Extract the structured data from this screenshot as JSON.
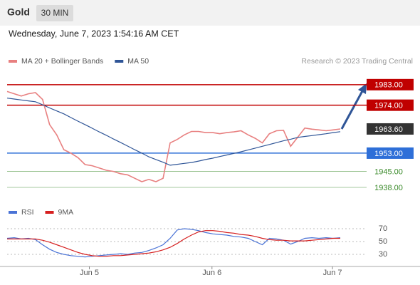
{
  "header": {
    "title": "Gold",
    "interval": "30 MIN",
    "date": "Wednesday, June 7, 2023 1:54:16 AM CET",
    "credit": "Research © 2023 Trading Central"
  },
  "chart_data": [
    {
      "type": "line",
      "x": [
        0,
        1,
        2,
        3,
        4,
        5,
        6,
        7,
        8,
        9,
        10,
        11,
        12,
        13,
        14,
        15,
        16,
        17,
        18,
        19,
        20,
        21,
        22,
        23,
        24,
        25,
        26,
        27,
        28,
        29,
        30,
        31,
        32,
        33,
        34,
        35,
        36,
        37,
        38,
        39,
        40,
        41,
        42,
        43,
        44,
        45,
        46,
        47
      ],
      "xlim": [
        0,
        47
      ],
      "xticks": [
        {
          "value": 11.6,
          "label": "Jun 5"
        },
        {
          "value": 28.9,
          "label": "Jun 6"
        },
        {
          "value": 45.9,
          "label": "Jun 7"
        }
      ],
      "ylim": [
        1935,
        1987
      ],
      "series": [
        {
          "name": "MA 20 + Bollinger Bands",
          "color": "#e88080",
          "values": [
            1980,
            1979,
            1978,
            1979,
            1979.5,
            1976.5,
            1965.5,
            1961,
            1954.5,
            1953,
            1951,
            1948,
            1947.5,
            1946.5,
            1945.5,
            1945,
            1944,
            1943.5,
            1942,
            1940.5,
            1941.5,
            1940.5,
            1942,
            1957.5,
            1959,
            1961,
            1962.5,
            1962.5,
            1962,
            1962,
            1961.5,
            1962,
            1962.3,
            1962.8,
            1961,
            1959.5,
            1957.5,
            1961.5,
            1962.8,
            1963,
            1956,
            1960,
            1964,
            1963.5,
            1963.2,
            1962.8,
            1963.2,
            1963.6
          ]
        },
        {
          "name": "MA 50",
          "color": "#2f5597",
          "values": [
            1977.1,
            1976.7,
            1976.3,
            1975.9,
            1975.5,
            1974.2,
            1972.8,
            1971.5,
            1970.2,
            1968.6,
            1967.0,
            1965.5,
            1963.9,
            1962.3,
            1960.8,
            1959.2,
            1957.7,
            1956.1,
            1954.5,
            1953.0,
            1951.4,
            1950.2,
            1949.0,
            1947.7,
            1948.1,
            1948.5,
            1948.9,
            1949.5,
            1950.2,
            1950.8,
            1951.5,
            1952.2,
            1952.9,
            1953.6,
            1954.4,
            1955.2,
            1956.0,
            1956.8,
            1957.6,
            1958.4,
            1959.1,
            1959.9,
            1960.3,
            1960.7,
            1961.1,
            1961.5,
            1962.0,
            1962.4
          ]
        }
      ],
      "levels": [
        {
          "value": 1983,
          "label": "1983.00",
          "color": "#c00000",
          "boxed": true
        },
        {
          "value": 1974,
          "label": "1974.00",
          "color": "#c00000",
          "boxed": true
        },
        {
          "value": 1963.6,
          "label": "1963.60",
          "color": "#333333",
          "boxed": true
        },
        {
          "value": 1953,
          "label": "1953.00",
          "color": "#2e6fd8",
          "boxed": true
        },
        {
          "value": 1945,
          "label": "1945.00",
          "color": "#3a8a2a",
          "boxed": false
        },
        {
          "value": 1938,
          "label": "1938.00",
          "color": "#3a8a2a",
          "boxed": false
        }
      ]
    },
    {
      "type": "line",
      "xlim": [
        0,
        47
      ],
      "ylim": [
        20,
        80
      ],
      "yticks": [
        70,
        50,
        30
      ],
      "series": [
        {
          "name": "RSI",
          "color": "#4a73d6",
          "values": [
            55,
            56,
            54,
            55,
            53,
            45,
            38,
            33,
            30,
            28,
            27,
            26,
            27,
            28,
            29,
            30,
            31,
            30,
            32,
            33,
            36,
            40,
            45,
            55,
            68,
            70,
            69,
            67,
            64,
            62,
            61,
            60,
            58,
            57,
            55,
            50,
            45,
            55,
            54,
            52,
            46,
            50,
            55,
            56,
            55,
            56,
            55,
            56
          ]
        },
        {
          "name": "9MA",
          "color": "#d62020",
          "values": [
            54,
            54,
            54,
            54,
            54,
            52,
            49,
            45,
            41,
            37,
            33,
            30,
            28,
            27,
            27,
            28,
            28,
            29,
            30,
            31,
            32,
            34,
            37,
            41,
            47,
            54,
            60,
            65,
            67,
            67,
            66,
            64,
            63,
            61,
            60,
            58,
            55,
            53,
            52,
            52,
            51,
            51,
            51,
            52,
            53,
            54,
            55,
            55
          ]
        }
      ]
    }
  ]
}
